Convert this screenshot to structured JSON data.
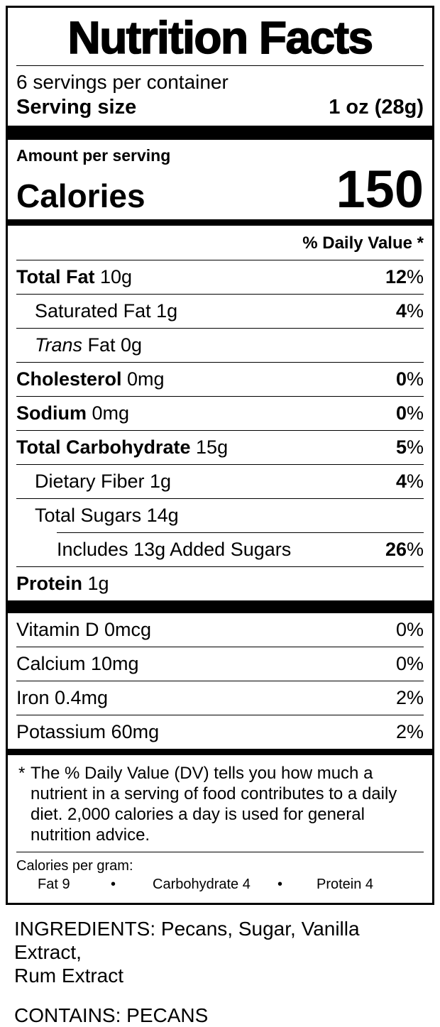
{
  "colors": {
    "ink": "#000000",
    "paper": "#ffffff"
  },
  "nutrition_label": {
    "title": "Nutrition Facts",
    "servings_per_container": "6 servings per container",
    "serving_size": {
      "label": "Serving size",
      "value": "1 oz (28g)"
    },
    "amount_per_serving": "Amount per serving",
    "calories": {
      "label": "Calories",
      "value": "150"
    },
    "daily_value_header": "% Daily Value *",
    "nutrient_rows": [
      {
        "bold": "Total Fat",
        "rest": " 10g",
        "dv_num": "12",
        "dv_sign": "%"
      },
      {
        "rest": "Saturated Fat 1g",
        "dv_num": "4",
        "dv_sign": "%"
      },
      {
        "italic": "Trans",
        "rest": " Fat 0g"
      },
      {
        "bold": "Cholesterol",
        "rest": " 0mg",
        "dv_num": "0",
        "dv_sign": "%"
      },
      {
        "bold": "Sodium",
        "rest": " 0mg",
        "dv_num": "0",
        "dv_sign": "%"
      },
      {
        "bold": "Total Carbohydrate",
        "rest": " 15g",
        "dv_num": "5",
        "dv_sign": "%"
      },
      {
        "rest": "Dietary Fiber 1g",
        "dv_num": "4",
        "dv_sign": "%"
      },
      {
        "rest": "Total Sugars 14g"
      },
      {
        "rest": "Includes 13g Added Sugars",
        "dv_num": "26",
        "dv_sign": "%"
      },
      {
        "bold": "Protein",
        "rest": " 1g"
      }
    ],
    "micronutrient_rows": [
      {
        "label": "Vitamin D 0mcg",
        "dv": "0%"
      },
      {
        "label": "Calcium 10mg",
        "dv": "0%"
      },
      {
        "label": "Iron 0.4mg",
        "dv": "2%"
      },
      {
        "label": "Potassium 60mg",
        "dv": "2%"
      }
    ],
    "footnote": {
      "marker": "*",
      "lines": [
        "The % Daily Value (DV) tells you how much a",
        "nutrient in a serving of food contributes to a daily",
        "diet. 2,000 calories a day is used for general",
        "nutrition advice."
      ]
    },
    "calories_per_gram": {
      "heading": "Calories per gram:",
      "fat": "Fat 9",
      "bullet1": "•",
      "carbohydrate": "Carbohydrate 4",
      "bullet2": "•",
      "protein": "Protein 4"
    }
  },
  "ingredients": {
    "lines": [
      "INGREDIENTS: Pecans, Sugar, Vanilla Extract,",
      "Rum Extract"
    ]
  },
  "contains_text": "CONTAINS: PECANS"
}
